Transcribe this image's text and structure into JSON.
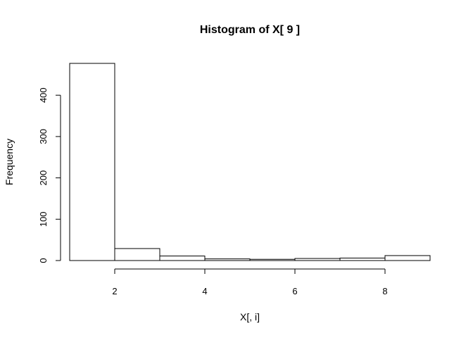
{
  "chart_data": {
    "type": "bar",
    "title": "Histogram of X[ 9 ]",
    "xlabel": "X[, i]",
    "ylabel": "Frequency",
    "bins": [
      {
        "from": 1,
        "to": 2,
        "count": 477
      },
      {
        "from": 2,
        "to": 3,
        "count": 29
      },
      {
        "from": 3,
        "to": 4,
        "count": 11
      },
      {
        "from": 4,
        "to": 5,
        "count": 4
      },
      {
        "from": 5,
        "to": 6,
        "count": 3
      },
      {
        "from": 6,
        "to": 7,
        "count": 5
      },
      {
        "from": 7,
        "to": 8,
        "count": 6
      },
      {
        "from": 8,
        "to": 9,
        "count": 12
      }
    ],
    "xlim": [
      1,
      9
    ],
    "ylim": [
      0,
      477
    ],
    "x_ticks": [
      2,
      4,
      6,
      8
    ],
    "y_ticks": [
      0,
      100,
      200,
      300,
      400
    ],
    "grid": false,
    "bar_fill": "#ffffff",
    "bar_stroke": "#000000"
  }
}
